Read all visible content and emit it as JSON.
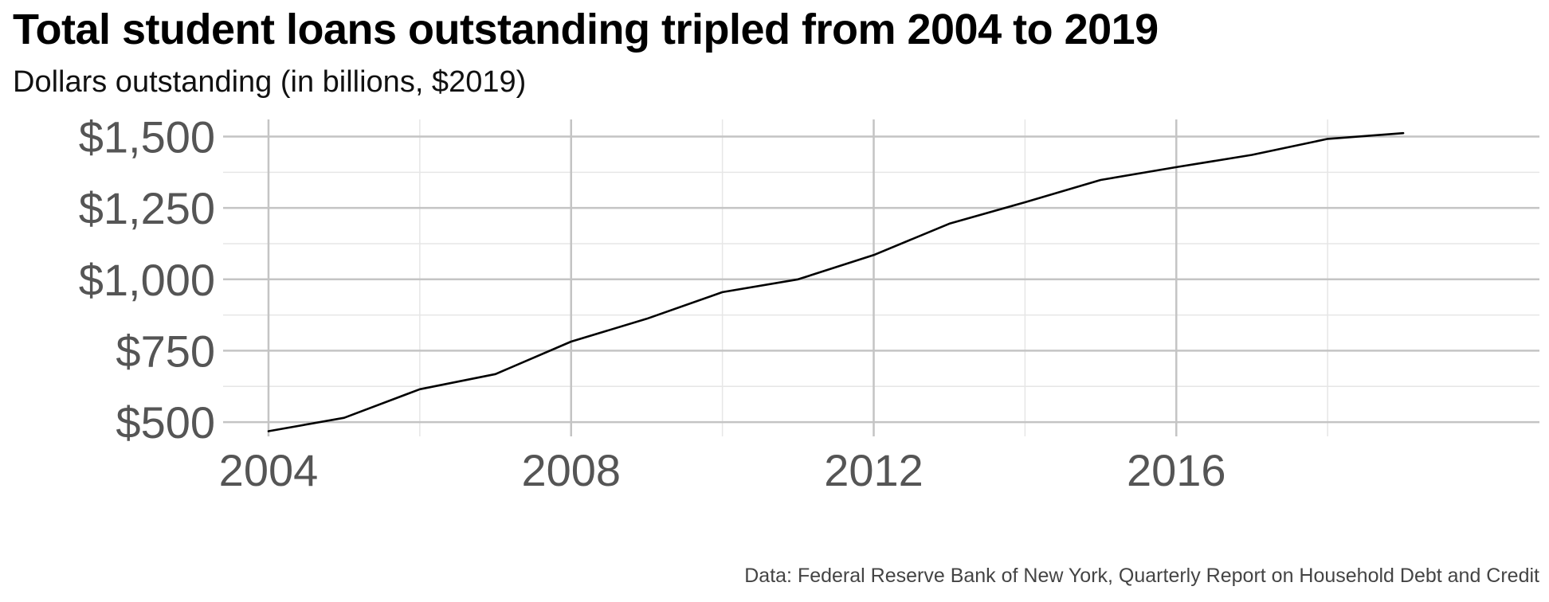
{
  "chart_data": {
    "type": "line",
    "title": "Total student loans outstanding tripled from 2004 to 2019",
    "subtitle": "Dollars outstanding (in billions, $2019)",
    "caption": "Data: Federal Reserve Bank of New York, Quarterly Report on Household Debt and Credit",
    "xlabel": "",
    "ylabel": "",
    "x": [
      2004,
      2005,
      2006,
      2007,
      2008,
      2009,
      2010,
      2011,
      2012,
      2013,
      2014,
      2015,
      2016,
      2017,
      2018,
      2019
    ],
    "series": [
      {
        "values": [
          468,
          515,
          615,
          668,
          782,
          862,
          955,
          1000,
          1085,
          1195,
          1270,
          1348,
          1393,
          1436,
          1492,
          1512
        ]
      }
    ],
    "xlim": [
      2003.4,
      2020.8
    ],
    "ylim": [
      450,
      1560
    ],
    "x_ticks": [
      2004,
      2008,
      2012,
      2016
    ],
    "x_tick_labels": [
      "2004",
      "2008",
      "2012",
      "2016"
    ],
    "y_ticks": [
      500,
      750,
      1000,
      1250,
      1500
    ],
    "y_tick_labels": [
      "$500",
      "$750",
      "$1,000",
      "$1,250",
      "$1,500"
    ],
    "grid": true,
    "line_color": "#000000",
    "major_grid_color": "#c4c4c4",
    "minor_grid_color": "#e6e6e6"
  }
}
